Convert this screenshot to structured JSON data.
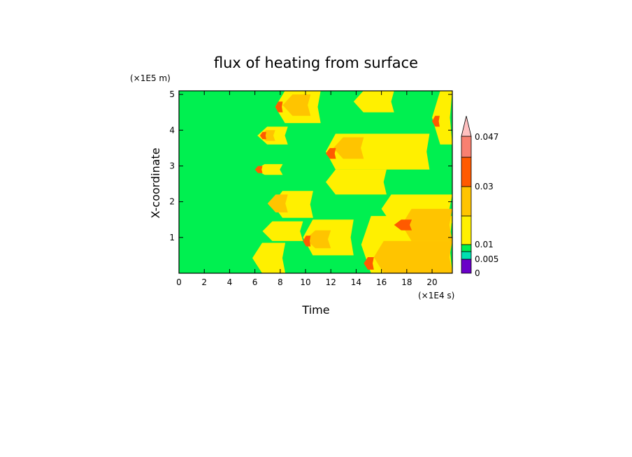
{
  "chart_data": {
    "type": "heatmap",
    "title": "flux of heating from surface",
    "xlabel": "Time",
    "ylabel": "X-coordinate",
    "x_unit": "(×1E4 s)",
    "y_unit": "(×1E5 m)",
    "xlim": [
      0,
      21.6
    ],
    "ylim": [
      0,
      5.1
    ],
    "x_ticks": [
      0,
      2,
      4,
      6,
      8,
      10,
      12,
      14,
      16,
      18,
      20
    ],
    "y_ticks": [
      1,
      2,
      3,
      4,
      5
    ],
    "colorbar": {
      "labels": [
        {
          "value": 0,
          "text": "0"
        },
        {
          "value": 0.005,
          "text": "0.005"
        },
        {
          "value": 0.01,
          "text": "0.01"
        },
        {
          "value": 0.03,
          "text": "0.03"
        },
        {
          "value": 0.047,
          "text": "0.047"
        }
      ],
      "levels": [
        {
          "color": "#6a00c8"
        },
        {
          "color": "#00e0b0"
        },
        {
          "color": "#00f050"
        },
        {
          "color": "#fff000"
        },
        {
          "color": "#ffc400"
        },
        {
          "color": "#ff5a00"
        },
        {
          "color": "#f88070"
        },
        {
          "color": "#ffc0c0"
        }
      ]
    },
    "background_level": 2,
    "regions": [
      {
        "level": 3,
        "t0": 5.8,
        "t1": 8.4,
        "x0": 0.0,
        "x1": 0.85
      },
      {
        "level": 3,
        "t0": 6.6,
        "t1": 9.8,
        "x0": 0.9,
        "x1": 1.45
      },
      {
        "level": 3,
        "t0": 7.4,
        "t1": 10.6,
        "x0": 1.55,
        "x1": 2.3
      },
      {
        "level": 3,
        "t0": 6.0,
        "t1": 8.2,
        "x0": 2.75,
        "x1": 3.05
      },
      {
        "level": 3,
        "t0": 6.2,
        "t1": 8.6,
        "x0": 3.6,
        "x1": 4.1
      },
      {
        "level": 3,
        "t0": 7.6,
        "t1": 11.2,
        "x0": 4.2,
        "x1": 5.1
      },
      {
        "level": 3,
        "t0": 9.8,
        "t1": 13.8,
        "x0": 0.5,
        "x1": 1.5
      },
      {
        "level": 3,
        "t0": 11.6,
        "t1": 16.4,
        "x0": 2.2,
        "x1": 2.9
      },
      {
        "level": 3,
        "t0": 11.6,
        "t1": 19.8,
        "x0": 2.9,
        "x1": 3.9
      },
      {
        "level": 3,
        "t0": 13.8,
        "t1": 17.0,
        "x0": 4.5,
        "x1": 5.1
      },
      {
        "level": 3,
        "t0": 14.4,
        "t1": 21.6,
        "x0": 0.0,
        "x1": 1.6
      },
      {
        "level": 3,
        "t0": 16.0,
        "t1": 21.6,
        "x0": 1.4,
        "x1": 2.2
      },
      {
        "level": 3,
        "t0": 20.0,
        "t1": 21.6,
        "x0": 3.6,
        "x1": 5.1
      },
      {
        "level": 4,
        "t0": 15.4,
        "t1": 21.6,
        "x0": 0.0,
        "x1": 0.9
      },
      {
        "level": 4,
        "t0": 17.6,
        "t1": 21.6,
        "x0": 0.9,
        "x1": 1.8
      },
      {
        "level": 4,
        "t0": 6.4,
        "t1": 7.6,
        "x0": 3.7,
        "x1": 4.0
      },
      {
        "level": 4,
        "t0": 8.2,
        "t1": 10.4,
        "x0": 4.4,
        "x1": 5.0
      },
      {
        "level": 4,
        "t0": 7.0,
        "t1": 8.6,
        "x0": 1.7,
        "x1": 2.2
      },
      {
        "level": 4,
        "t0": 10.0,
        "t1": 12.0,
        "x0": 0.7,
        "x1": 1.2
      },
      {
        "level": 4,
        "t0": 12.2,
        "t1": 14.6,
        "x0": 3.2,
        "x1": 3.8
      },
      {
        "level": 5,
        "t0": 14.6,
        "t1": 15.4,
        "x0": 0.1,
        "x1": 0.45
      },
      {
        "level": 5,
        "t0": 6.0,
        "t1": 6.6,
        "x0": 2.8,
        "x1": 3.0
      },
      {
        "level": 5,
        "t0": 6.4,
        "t1": 6.9,
        "x0": 3.75,
        "x1": 3.95
      },
      {
        "level": 5,
        "t0": 9.8,
        "t1": 10.4,
        "x0": 0.75,
        "x1": 1.05
      },
      {
        "level": 5,
        "t0": 11.6,
        "t1": 12.4,
        "x0": 3.2,
        "x1": 3.5
      },
      {
        "level": 5,
        "t0": 17.0,
        "t1": 18.4,
        "x0": 1.2,
        "x1": 1.5
      },
      {
        "level": 5,
        "t0": 20.0,
        "t1": 20.6,
        "x0": 4.1,
        "x1": 4.4
      },
      {
        "level": 5,
        "t0": 7.6,
        "t1": 8.2,
        "x0": 4.5,
        "x1": 4.8
      }
    ]
  }
}
